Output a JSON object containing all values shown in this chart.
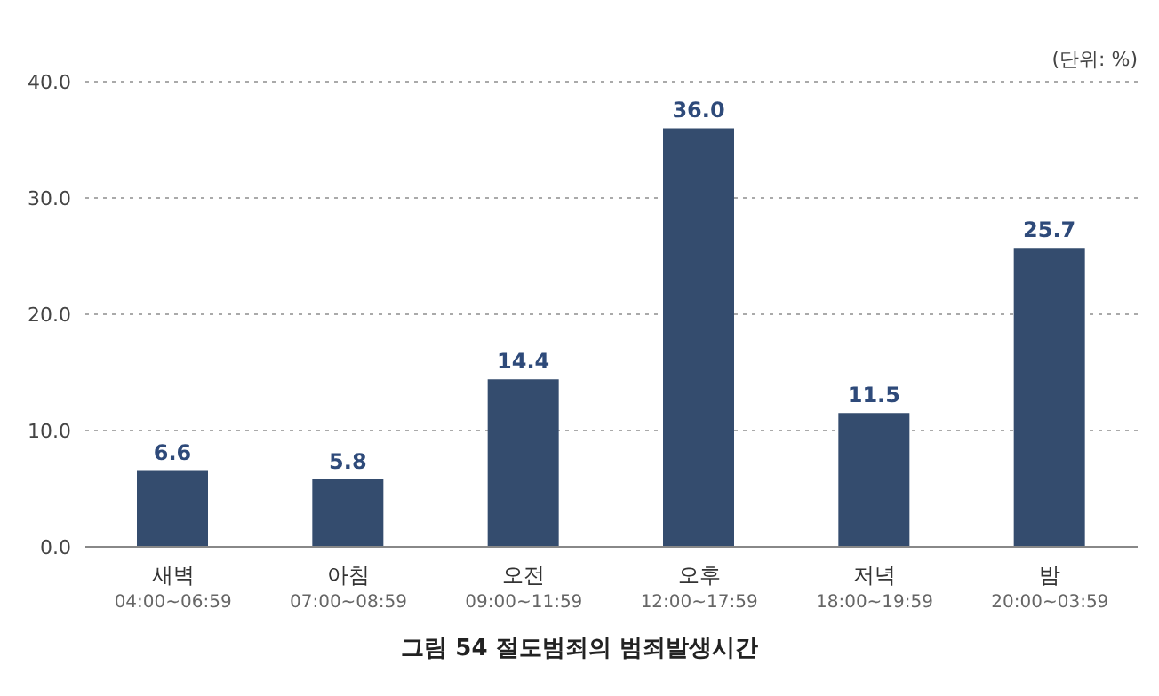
{
  "chart_data": {
    "type": "bar",
    "title": "그림 54 절도범죄의 범죄발생시간",
    "annotations": [
      "(단위: %)"
    ],
    "categories": [
      "새벽\n04:00~06:59",
      "아침\n07:00~08:59",
      "오전\n09:00~11:59",
      "오후\n12:00~17:59",
      "저녁\n18:00~19:59",
      "밤\n20:00~03:59"
    ],
    "values": [
      6.6,
      5.8,
      14.4,
      36.0,
      11.5,
      25.7
    ],
    "value_labels": [
      "6.6",
      "5.8",
      "14.4",
      "36.0",
      "11.5",
      "25.7"
    ],
    "color": "#344c6e",
    "ylim": [
      0,
      40
    ],
    "yticks": [
      {
        "value": 0,
        "label": "0.0"
      },
      {
        "value": 10,
        "label": "10.0"
      },
      {
        "value": 20,
        "label": "20.0"
      },
      {
        "value": 30,
        "label": "30.0"
      },
      {
        "value": 40,
        "label": "40.0"
      }
    ],
    "grid": "y"
  }
}
